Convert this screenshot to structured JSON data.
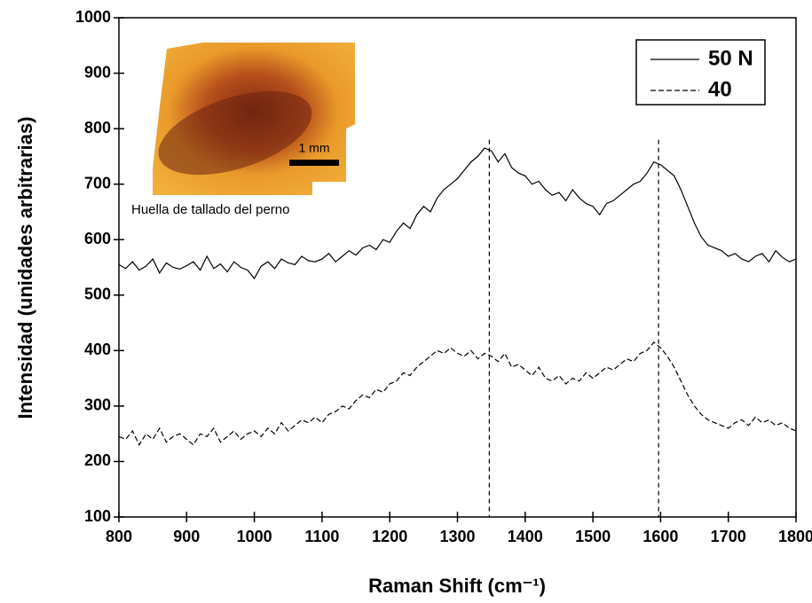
{
  "chart_data": {
    "type": "line",
    "xlabel": "Raman Shift (cm⁻¹)",
    "ylabel": "Intensidad (unidades arbitrarias)",
    "x": [
      800,
      810,
      820,
      830,
      840,
      850,
      860,
      870,
      880,
      890,
      900,
      910,
      920,
      930,
      940,
      950,
      960,
      970,
      980,
      990,
      1000,
      1010,
      1020,
      1030,
      1040,
      1050,
      1060,
      1070,
      1080,
      1090,
      1100,
      1110,
      1120,
      1130,
      1140,
      1150,
      1160,
      1170,
      1180,
      1190,
      1200,
      1210,
      1220,
      1230,
      1240,
      1250,
      1260,
      1270,
      1280,
      1290,
      1300,
      1310,
      1320,
      1330,
      1340,
      1350,
      1360,
      1370,
      1380,
      1390,
      1400,
      1410,
      1420,
      1430,
      1440,
      1450,
      1460,
      1470,
      1480,
      1490,
      1500,
      1510,
      1520,
      1530,
      1540,
      1550,
      1560,
      1570,
      1580,
      1590,
      1600,
      1610,
      1620,
      1630,
      1640,
      1650,
      1660,
      1670,
      1680,
      1690,
      1700,
      1710,
      1720,
      1730,
      1740,
      1750,
      1760,
      1770,
      1780,
      1790,
      1800
    ],
    "series": [
      {
        "name": "50 N",
        "color": "#000000",
        "dash": "solid",
        "values": [
          555,
          548,
          560,
          545,
          552,
          565,
          540,
          558,
          550,
          547,
          553,
          560,
          545,
          570,
          548,
          556,
          542,
          560,
          550,
          545,
          530,
          552,
          560,
          548,
          565,
          558,
          555,
          570,
          562,
          560,
          565,
          575,
          560,
          570,
          580,
          572,
          585,
          590,
          582,
          600,
          595,
          615,
          630,
          620,
          645,
          660,
          650,
          675,
          690,
          700,
          710,
          725,
          740,
          750,
          765,
          760,
          740,
          755,
          730,
          720,
          715,
          700,
          705,
          690,
          680,
          685,
          670,
          690,
          675,
          665,
          660,
          645,
          665,
          670,
          680,
          690,
          700,
          705,
          720,
          740,
          735,
          725,
          715,
          690,
          660,
          630,
          605,
          590,
          585,
          580,
          570,
          575,
          565,
          560,
          570,
          575,
          560,
          580,
          568,
          560,
          565
        ]
      },
      {
        "name": "40",
        "color": "#000000",
        "dash": "dashed",
        "values": [
          245,
          240,
          255,
          230,
          250,
          240,
          260,
          235,
          245,
          250,
          240,
          230,
          250,
          245,
          260,
          235,
          245,
          255,
          240,
          250,
          255,
          245,
          260,
          250,
          270,
          255,
          265,
          275,
          270,
          280,
          270,
          285,
          290,
          300,
          295,
          310,
          320,
          315,
          330,
          325,
          340,
          345,
          360,
          355,
          370,
          380,
          390,
          400,
          395,
          405,
          395,
          390,
          400,
          385,
          395,
          390,
          380,
          395,
          370,
          375,
          365,
          355,
          370,
          350,
          345,
          355,
          340,
          350,
          345,
          360,
          350,
          360,
          370,
          365,
          375,
          385,
          380,
          395,
          400,
          415,
          405,
          390,
          370,
          345,
          320,
          300,
          285,
          275,
          270,
          265,
          260,
          270,
          275,
          265,
          280,
          270,
          275,
          265,
          270,
          260,
          255
        ]
      }
    ],
    "vlines": [
      1347,
      1597
    ],
    "xlim": [
      800,
      1800
    ],
    "ylim": [
      100,
      1000
    ],
    "xticks": [
      800,
      900,
      1000,
      1100,
      1200,
      1300,
      1400,
      1500,
      1600,
      1700,
      1800
    ],
    "yticks": [
      100,
      200,
      300,
      400,
      500,
      600,
      700,
      800,
      900,
      1000
    ],
    "legend": "upper right",
    "inset": {
      "caption": "Huella de tallado del perno",
      "scale_label": "1 mm"
    }
  }
}
